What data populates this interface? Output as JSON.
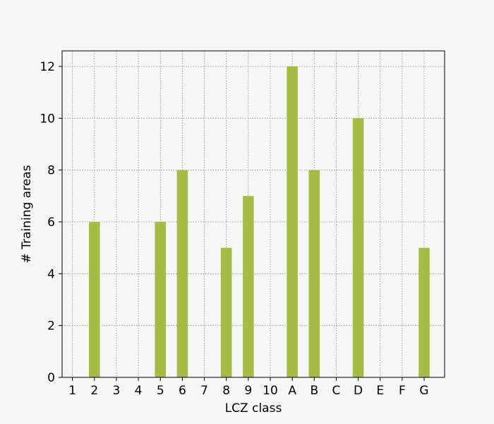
{
  "chart_data": {
    "type": "bar",
    "xlabel": "LCZ class",
    "ylabel": "# Training areas",
    "categories": [
      "1",
      "2",
      "3",
      "4",
      "5",
      "6",
      "7",
      "8",
      "9",
      "10",
      "A",
      "B",
      "C",
      "D",
      "E",
      "F",
      "G"
    ],
    "values": [
      0,
      6,
      0,
      0,
      6,
      8,
      0,
      5,
      7,
      0,
      12,
      8,
      0,
      10,
      0,
      0,
      5
    ],
    "ylim": [
      0,
      12.6
    ],
    "yticks": [
      0,
      2,
      4,
      6,
      8,
      10,
      12
    ],
    "grid": true,
    "bar_color": "#a5bd44",
    "background": "#f7f7f7"
  }
}
